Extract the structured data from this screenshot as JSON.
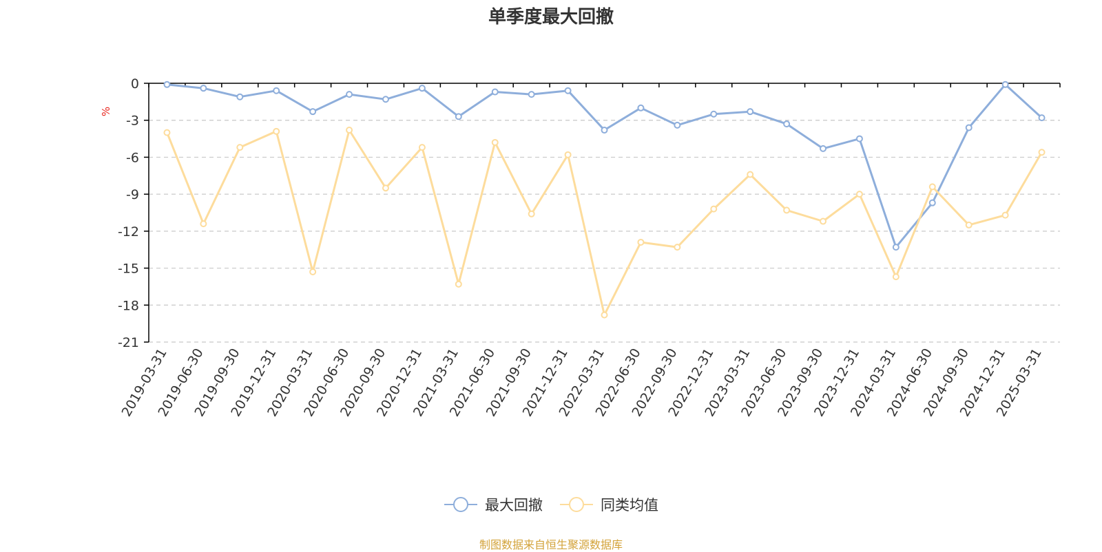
{
  "colors": {
    "series1": "#8eaedb",
    "series2": "#fddc9c",
    "unit": "#e8261f",
    "source": "#d3a33a",
    "grid": "#c8c8c8",
    "axis": "#000000"
  },
  "chart_data": {
    "type": "line",
    "title": "单季度最大回撤",
    "ylabel": "%",
    "ylim": [
      -21,
      0
    ],
    "yticks": [
      "0",
      "-3",
      "-6",
      "-9",
      "-12",
      "-15",
      "-18",
      "-21"
    ],
    "grid": "dashed horizontal",
    "legend_position": "bottom-center",
    "categories": [
      "2019-03-31",
      "2019-06-30",
      "2019-09-30",
      "2019-12-31",
      "2020-03-31",
      "2020-06-30",
      "2020-09-30",
      "2020-12-31",
      "2021-03-31",
      "2021-06-30",
      "2021-09-30",
      "2021-12-31",
      "2022-03-31",
      "2022-06-30",
      "2022-09-30",
      "2022-12-31",
      "2023-03-31",
      "2023-06-30",
      "2023-09-30",
      "2023-12-31",
      "2024-03-31",
      "2024-06-30",
      "2024-09-30",
      "2024-12-31",
      "2025-03-31"
    ],
    "series": [
      {
        "name": "最大回撤",
        "values": [
          -0.1,
          -0.4,
          -1.1,
          -0.6,
          -2.3,
          -0.9,
          -1.3,
          -0.4,
          -2.7,
          -0.7,
          -0.9,
          -0.6,
          -3.8,
          -2.0,
          -3.4,
          -2.5,
          -2.3,
          -3.3,
          -5.3,
          -4.5,
          -13.3,
          -9.7,
          -3.6,
          -0.1,
          -2.8
        ]
      },
      {
        "name": "同类均值",
        "values": [
          -4.0,
          -11.4,
          -5.2,
          -3.9,
          -15.3,
          -3.8,
          -8.5,
          -5.2,
          -16.3,
          -4.8,
          -10.6,
          -5.8,
          -18.8,
          -12.9,
          -13.3,
          -10.2,
          -7.4,
          -10.3,
          -11.2,
          -9.0,
          -15.7,
          -8.4,
          -11.5,
          -10.7,
          -5.6
        ]
      }
    ]
  },
  "legend": {
    "item1": "最大回撤",
    "item2": "同类均值"
  },
  "source_note": "制图数据来自恒生聚源数据库"
}
